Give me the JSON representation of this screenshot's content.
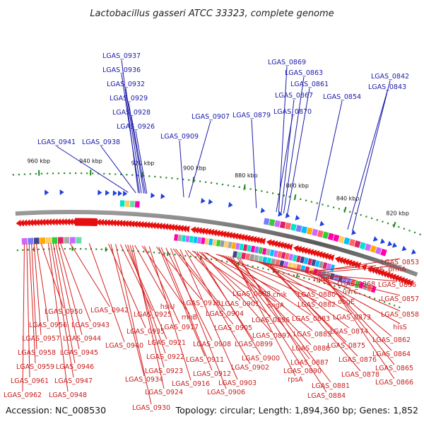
{
  "title": "Lactobacillus gasseri ATCC 33323, complete genome",
  "footer": {
    "accession": "Accession: NC_008530",
    "summary": "Topology: circular; Length: 1,894,360 bp; Genes: 1,852"
  },
  "ticks": [
    {
      "kb": 960,
      "label": "960 kbp"
    },
    {
      "kb": 940,
      "label": "940 kbp"
    },
    {
      "kb": 920,
      "label": "920 kbp"
    },
    {
      "kb": 900,
      "label": "900 kbp"
    },
    {
      "kb": 880,
      "label": "880 kbp"
    },
    {
      "kb": 860,
      "label": "860 kbp"
    },
    {
      "kb": 840,
      "label": "840 kbp"
    },
    {
      "kb": 820,
      "label": "820 kbp"
    }
  ],
  "plus_labels": [
    {
      "text": "LGAS_0937",
      "kb": 921.0
    },
    {
      "text": "LGAS_0936",
      "kb": 920.5
    },
    {
      "text": "LGAS_0932",
      "kb": 919.8
    },
    {
      "text": "LGAS_0929",
      "kb": 918.8
    },
    {
      "text": "LGAS_0928",
      "kb": 918.2
    },
    {
      "text": "LGAS_0926",
      "kb": 917.6
    },
    {
      "text": "LGAS_0941",
      "kb": 925.0
    },
    {
      "text": "LGAS_0938",
      "kb": 922.0
    },
    {
      "text": "LGAS_0909",
      "kb": 903.0
    },
    {
      "text": "LGAS_0907",
      "kb": 901.0
    },
    {
      "text": "LGAS_0879",
      "kb": 874.0
    },
    {
      "text": "LGAS_0869",
      "kb": 865.0
    },
    {
      "text": "LGAS_0863",
      "kb": 863.0
    },
    {
      "text": "LGAS_0861",
      "kb": 861.5
    },
    {
      "text": "LGAS_0867",
      "kb": 864.0
    },
    {
      "text": "LGAS_0870",
      "kb": 866.0
    },
    {
      "text": "LGAS_0854",
      "kb": 850.0
    },
    {
      "text": "LGAS_0843",
      "kb": 837.0
    },
    {
      "text": "LGAS_0842",
      "kb": 835.0
    }
  ],
  "minus_labels": [
    {
      "text": "LGAS_0950",
      "kb": 960
    },
    {
      "text": "LGAS_0956",
      "kb": 962
    },
    {
      "text": "LGAS_0957",
      "kb": 963
    },
    {
      "text": "LGAS_0958",
      "kb": 964
    },
    {
      "text": "LGAS_0959",
      "kb": 965
    },
    {
      "text": "LGAS_0961",
      "kb": 966
    },
    {
      "text": "LGAS_0962",
      "kb": 967
    },
    {
      "text": "LGAS_0943",
      "kb": 952
    },
    {
      "text": "LGAS_0944",
      "kb": 953
    },
    {
      "text": "LGAS_0945",
      "kb": 954
    },
    {
      "text": "LGAS_0946",
      "kb": 955
    },
    {
      "text": "LGAS_0947",
      "kb": 956
    },
    {
      "text": "LGAS_0948",
      "kb": 957
    },
    {
      "text": "LGAS_0942",
      "kb": 948
    },
    {
      "text": "LGAS_0940",
      "kb": 940
    },
    {
      "text": "LGAS_0935",
      "kb": 932
    },
    {
      "text": "LGAS_0925",
      "kb": 927
    },
    {
      "text": "LGAS_0921",
      "kb": 925
    },
    {
      "text": "LGAS_0922",
      "kb": 924
    },
    {
      "text": "LGAS_0923",
      "kb": 923
    },
    {
      "text": "LGAS_0934",
      "kb": 931
    },
    {
      "text": "LGAS_0924",
      "kb": 922
    },
    {
      "text": "LGAS_0930",
      "kb": 929
    },
    {
      "text": "hslU",
      "kb": 921
    },
    {
      "text": "rnhB",
      "kb": 918
    },
    {
      "text": "LGAS_0917",
      "kb": 917
    },
    {
      "text": "LGAS_0916",
      "kb": 915
    },
    {
      "text": "LGAS_0910",
      "kb": 912
    },
    {
      "text": "LGAS_0911",
      "kb": 911
    },
    {
      "text": "LGAS_0912",
      "kb": 910
    },
    {
      "text": "LGAS_0908",
      "kb": 908
    },
    {
      "text": "LGAS_0906",
      "kb": 906
    },
    {
      "text": "LGAS_0904",
      "kb": 904
    },
    {
      "text": "LGAS_0905",
      "kb": 905
    },
    {
      "text": "LGAS_0903",
      "kb": 902
    },
    {
      "text": "LGAS_0902",
      "kb": 900
    },
    {
      "text": "LGAS_0901",
      "kb": 899
    },
    {
      "text": "LGAS_0898",
      "kb": 897
    },
    {
      "text": "LGAS_0899",
      "kb": 896
    },
    {
      "text": "LGAS_0900",
      "kb": 895
    },
    {
      "text": "LGAS_0896",
      "kb": 894
    },
    {
      "text": "LGAS_0897",
      "kb": 893
    },
    {
      "text": "cmk",
      "kb": 892
    },
    {
      "text": "engA",
      "kb": 891
    },
    {
      "text": "LGAS_0880",
      "kb": 887
    },
    {
      "text": "LGAS_0882",
      "kb": 886
    },
    {
      "text": "LGAS_0883",
      "kb": 885
    },
    {
      "text": "LGAS_0885",
      "kb": 884
    },
    {
      "text": "LGAS_0886",
      "kb": 883
    },
    {
      "text": "LGAS_0887",
      "kb": 882
    },
    {
      "text": "LGAS_0890",
      "kb": 881
    },
    {
      "text": "rpsA",
      "kb": 880
    },
    {
      "text": "LGAS_0881",
      "kb": 878
    },
    {
      "text": "LGAS_0884",
      "kb": 877
    },
    {
      "text": "rpmF",
      "kb": 873
    },
    {
      "text": "LGAS_0868",
      "kb": 869
    },
    {
      "text": "uvrC",
      "kb": 871
    },
    {
      "text": "obgE",
      "kb": 870
    },
    {
      "text": "LGAS_0873",
      "kb": 868
    },
    {
      "text": "LGAS_0874",
      "kb": 867
    },
    {
      "text": "LGAS_0875",
      "kb": 866
    },
    {
      "text": "LGAS_0876",
      "kb": 865
    },
    {
      "text": "LGAS_0878",
      "kb": 864
    },
    {
      "text": "LGAS_0853",
      "kb": 848
    },
    {
      "text": "aspS",
      "kb": 850
    },
    {
      "text": "prmA",
      "kb": 847
    },
    {
      "text": "LGAS_0856",
      "kb": 846
    },
    {
      "text": "LGAS_0857",
      "kb": 845
    },
    {
      "text": "LGAS_0858",
      "kb": 844
    },
    {
      "text": "hisS",
      "kb": 849
    },
    {
      "text": "LGAS_0862",
      "kb": 843
    },
    {
      "text": "LGAS_0864",
      "kb": 842
    },
    {
      "text": "LGAS_0865",
      "kb": 841
    },
    {
      "text": "LGAS_0866",
      "kb": 840
    }
  ]
}
